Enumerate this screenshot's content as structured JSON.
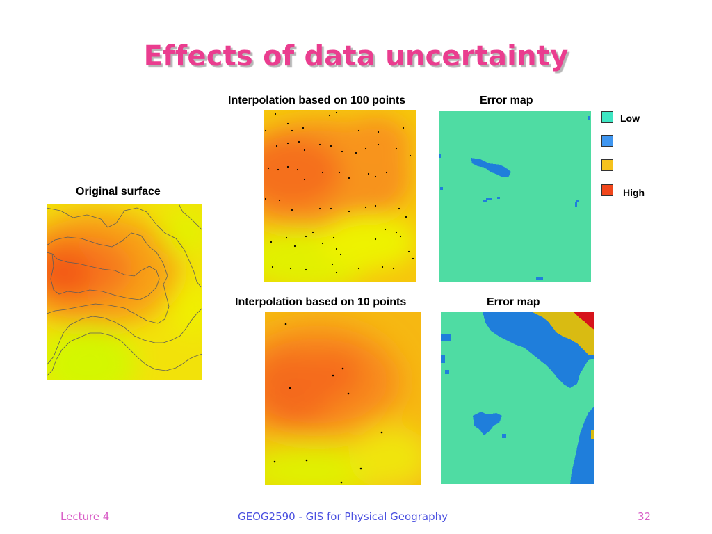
{
  "slide": {
    "title": "Effects of data uncertainty",
    "labels": {
      "original": "Original surface",
      "interp100": "Interpolation based on 100 points",
      "error1": "Error map",
      "interp10": "Interpolation based on 10 points",
      "error2": "Error map"
    },
    "legend": [
      {
        "label": "Low",
        "color": "#3ee6c3"
      },
      {
        "label": "",
        "color": "#3f96f0"
      },
      {
        "label": "",
        "color": "#f5c21d"
      },
      {
        "label": "High",
        "color": "#f1471c"
      }
    ],
    "footer": {
      "left": "Lecture 4",
      "center": "GEOG2590 - GIS for Physical Geography",
      "right": "32"
    }
  },
  "colors": {
    "title": "#ea3d8f",
    "footer_side": "#d85cc6",
    "footer_center": "#4a4fe0",
    "error_low": "#4fdca3",
    "error_mid": "#1f7edb",
    "error_high1": "#d9bb12",
    "error_high2": "#d6131b",
    "surface_low": "#d8f500",
    "surface_high": "#f4550f"
  }
}
